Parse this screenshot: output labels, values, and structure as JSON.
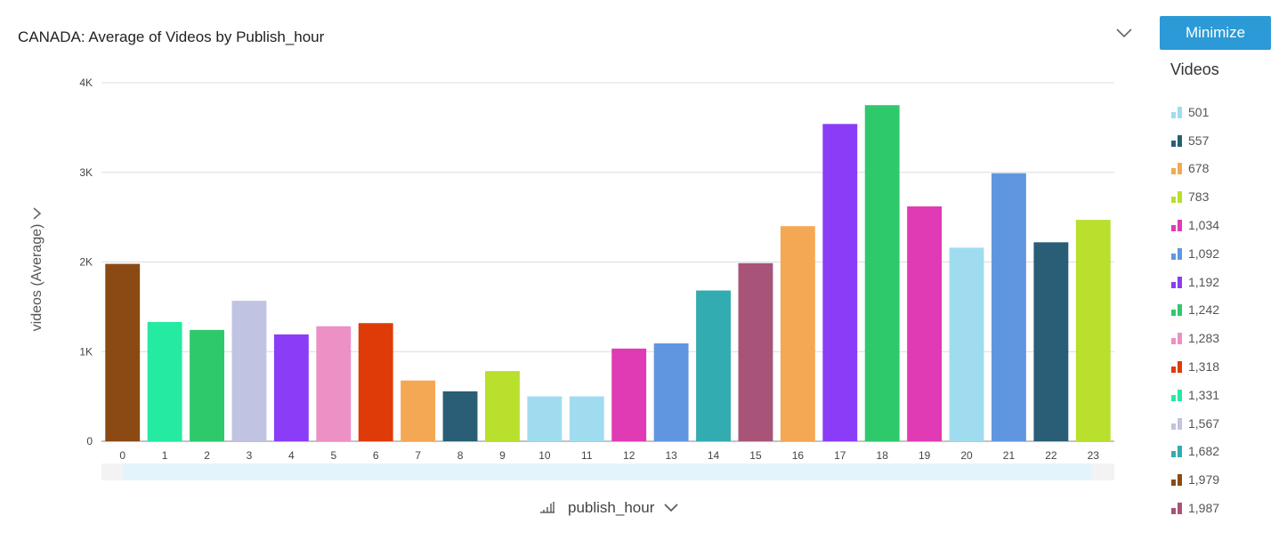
{
  "title": "CANADA: Average of Videos by Publish_hour",
  "minimize_label": "Minimize",
  "legend_title": "Videos",
  "y_axis_label": "videos (Average)",
  "x_axis_label": "publish_hour",
  "colors": {
    "button": "#2b9ad6",
    "scrollbar_track": "#f3f3f3",
    "scrollbar_thumb": "#e3f4fc"
  },
  "legend": [
    {
      "label": "501",
      "color": "#a0dcf0"
    },
    {
      "label": "557",
      "color": "#295e76"
    },
    {
      "label": "678",
      "color": "#f5a853"
    },
    {
      "label": "783",
      "color": "#b8e02c"
    },
    {
      "label": "1,034",
      "color": "#e03ab4"
    },
    {
      "label": "1,092",
      "color": "#6096e0"
    },
    {
      "label": "1,192",
      "color": "#8a3cf7"
    },
    {
      "label": "1,242",
      "color": "#2ec96b"
    },
    {
      "label": "1,283",
      "color": "#ed90c5"
    },
    {
      "label": "1,318",
      "color": "#df3b08"
    },
    {
      "label": "1,331",
      "color": "#25eaa2"
    },
    {
      "label": "1,567",
      "color": "#c1c3e3"
    },
    {
      "label": "1,682",
      "color": "#33acb1"
    },
    {
      "label": "1,979",
      "color": "#8b4a14"
    },
    {
      "label": "1,987",
      "color": "#a85478"
    }
  ],
  "chart_data": {
    "type": "bar",
    "title": "CANADA: Average of Videos by Publish_hour",
    "xlabel": "publish_hour",
    "ylabel": "videos (Average)",
    "ylim": [
      0,
      4000
    ],
    "yticks": [
      "0",
      "1K",
      "2K",
      "3K",
      "4K"
    ],
    "grid": true,
    "legend_position": "right",
    "categories": [
      "0",
      "1",
      "2",
      "3",
      "4",
      "5",
      "6",
      "7",
      "8",
      "9",
      "10",
      "11",
      "12",
      "13",
      "14",
      "15",
      "16",
      "17",
      "18",
      "19",
      "20",
      "21",
      "22",
      "23"
    ],
    "values": [
      1979,
      1331,
      1242,
      1567,
      1192,
      1283,
      1318,
      678,
      557,
      783,
      501,
      501,
      1034,
      1092,
      1682,
      1987,
      2400,
      3540,
      3750,
      2620,
      2160,
      2990,
      2220,
      2470
    ],
    "bar_colors": [
      "#8b4a14",
      "#25eaa2",
      "#2ec96b",
      "#c1c3e3",
      "#8a3cf7",
      "#ed90c5",
      "#df3b08",
      "#f5a853",
      "#295e76",
      "#b8e02c",
      "#a0dcf0",
      "#a0dcf0",
      "#e03ab4",
      "#6096e0",
      "#33acb1",
      "#a85478",
      "#f5a853",
      "#8a3cf7",
      "#2ec96b",
      "#e03ab4",
      "#a0dcf0",
      "#6096e0",
      "#295e76",
      "#b8e02c"
    ]
  }
}
